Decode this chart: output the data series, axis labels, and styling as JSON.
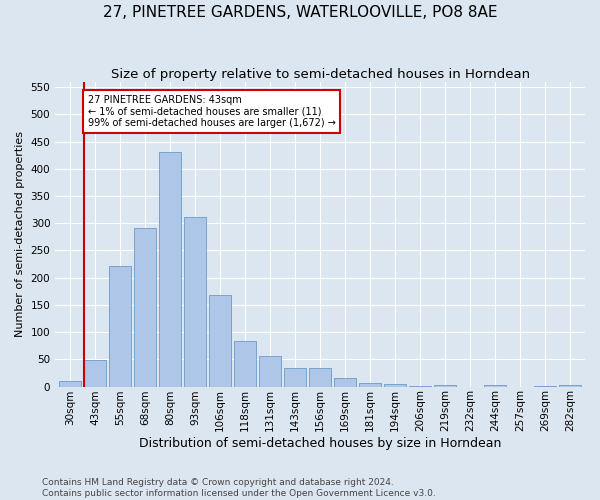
{
  "title": "27, PINETREE GARDENS, WATERLOOVILLE, PO8 8AE",
  "subtitle": "Size of property relative to semi-detached houses in Horndean",
  "xlabel": "Distribution of semi-detached houses by size in Horndean",
  "ylabel": "Number of semi-detached properties",
  "categories": [
    "30sqm",
    "43sqm",
    "55sqm",
    "68sqm",
    "80sqm",
    "93sqm",
    "106sqm",
    "118sqm",
    "131sqm",
    "143sqm",
    "156sqm",
    "169sqm",
    "181sqm",
    "194sqm",
    "206sqm",
    "219sqm",
    "232sqm",
    "244sqm",
    "257sqm",
    "269sqm",
    "282sqm"
  ],
  "values": [
    10,
    49,
    221,
    291,
    430,
    311,
    168,
    83,
    57,
    34,
    34,
    15,
    7,
    4,
    1,
    3,
    0,
    2,
    0,
    1,
    2
  ],
  "bar_color": "#aec6e8",
  "bar_edge_color": "#5a8fc2",
  "highlight_index": 1,
  "highlight_color": "#cc0000",
  "annotation_text": "27 PINETREE GARDENS: 43sqm\n← 1% of semi-detached houses are smaller (11)\n99% of semi-detached houses are larger (1,672) →",
  "annotation_box_color": "white",
  "annotation_box_edge_color": "#cc0000",
  "ylim": [
    0,
    560
  ],
  "yticks": [
    0,
    50,
    100,
    150,
    200,
    250,
    300,
    350,
    400,
    450,
    500,
    550
  ],
  "footer": "Contains HM Land Registry data © Crown copyright and database right 2024.\nContains public sector information licensed under the Open Government Licence v3.0.",
  "bg_color": "#dce6f0",
  "plot_bg_color": "#dce6f0",
  "grid_color": "white",
  "title_fontsize": 11,
  "subtitle_fontsize": 9.5,
  "xlabel_fontsize": 9,
  "ylabel_fontsize": 8,
  "tick_fontsize": 7.5,
  "footer_fontsize": 6.5
}
